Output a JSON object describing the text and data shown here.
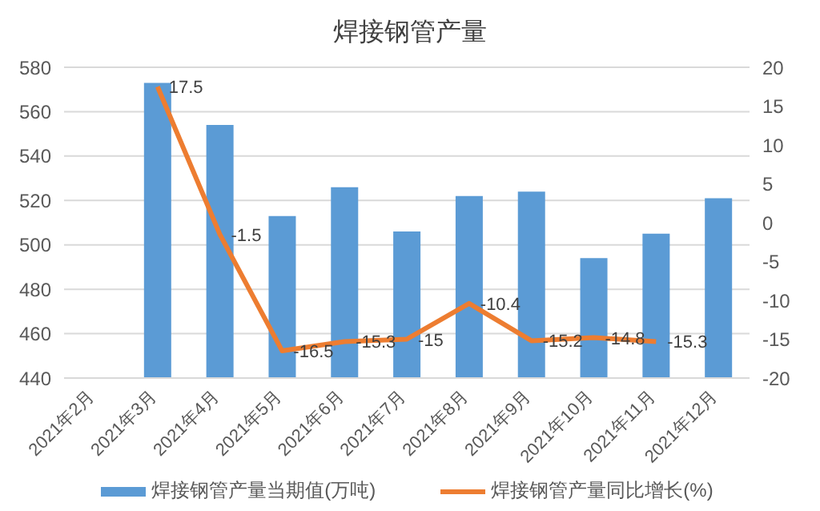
{
  "chart_data": {
    "type": "bar",
    "title": "焊接钢管产量",
    "categories": [
      "2021年2月",
      "2021年3月",
      "2021年4月",
      "2021年5月",
      "2021年6月",
      "2021年7月",
      "2021年8月",
      "2021年9月",
      "2021年10月",
      "2021年11月",
      "2021年12月"
    ],
    "series": [
      {
        "name": "焊接钢管产量当期值(万吨)",
        "color": "#5b9bd5",
        "values": [
          null,
          573,
          554,
          513,
          526,
          506,
          522,
          524,
          494,
          505,
          521
        ]
      },
      {
        "name": "焊接钢管产量同比增长(%)",
        "type": "line",
        "axis": "y2",
        "color": "#ed7d31",
        "values": [
          null,
          17.5,
          -1.5,
          -16.5,
          -15.3,
          -15,
          -10.4,
          -15.2,
          -14.8,
          -15.3,
          null
        ],
        "value_labels": [
          null,
          "17.5",
          "-1.5",
          "-16.5",
          "-15.3",
          "-15",
          "-10.4",
          "-15.2",
          "-14.8",
          "-15.3",
          null
        ]
      }
    ],
    "ylim": [
      440,
      580
    ],
    "yticks": [
      440,
      460,
      480,
      500,
      520,
      540,
      560,
      580
    ],
    "y2lim": [
      -20,
      20
    ],
    "y2ticks": [
      -20,
      -15,
      -10,
      -5,
      0,
      5,
      10,
      15,
      20
    ],
    "grid": "y",
    "legend": "bottom",
    "marker": "none",
    "line_style": "solid"
  }
}
